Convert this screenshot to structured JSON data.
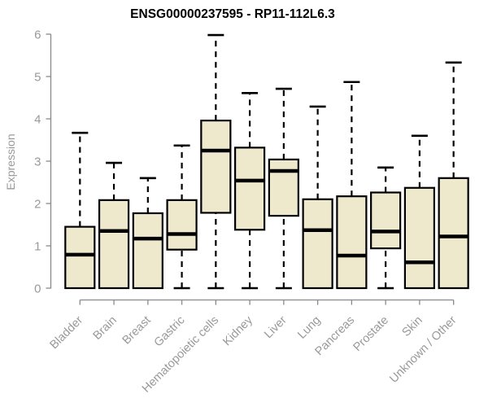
{
  "title": "ENSG00000237595 - RP11-112L6.3",
  "chart_data": {
    "type": "boxplot",
    "title": "ENSG00000237595 - RP11-112L6.3",
    "xlabel": "",
    "ylabel": "Expression",
    "ylim": [
      0,
      6
    ],
    "yticks": [
      0,
      1,
      2,
      3,
      4,
      5,
      6
    ],
    "grid": false,
    "legend": false,
    "categories": [
      "Bladder",
      "Brain",
      "Breast",
      "Gastric",
      "Hematopoietic cells",
      "Kidney",
      "Liver",
      "Lung",
      "Pancreas",
      "Prostate",
      "Skin",
      "Unknown / Other"
    ],
    "boxes": [
      {
        "label": "Bladder",
        "min": 0,
        "q1": 0,
        "median": 0.79,
        "q3": 1.45,
        "max": 3.67
      },
      {
        "label": "Brain",
        "min": 0,
        "q1": 0,
        "median": 1.35,
        "q3": 2.08,
        "max": 2.96
      },
      {
        "label": "Breast",
        "min": 0,
        "q1": 0,
        "median": 1.17,
        "q3": 1.77,
        "max": 2.6
      },
      {
        "label": "Gastric",
        "min": 0,
        "q1": 0.91,
        "median": 1.28,
        "q3": 2.08,
        "max": 3.37
      },
      {
        "label": "Hematopoietic cells",
        "min": 0,
        "q1": 1.78,
        "median": 3.25,
        "q3": 3.96,
        "max": 5.98
      },
      {
        "label": "Kidney",
        "min": 0,
        "q1": 1.38,
        "median": 2.54,
        "q3": 3.32,
        "max": 4.61
      },
      {
        "label": "Liver",
        "min": 0,
        "q1": 1.71,
        "median": 2.77,
        "q3": 3.04,
        "max": 4.71
      },
      {
        "label": "Lung",
        "min": 0,
        "q1": 0,
        "median": 1.37,
        "q3": 2.1,
        "max": 4.29
      },
      {
        "label": "Pancreas",
        "min": 0,
        "q1": 0,
        "median": 0.77,
        "q3": 2.17,
        "max": 4.87
      },
      {
        "label": "Prostate",
        "min": 0,
        "q1": 0.94,
        "median": 1.34,
        "q3": 2.26,
        "max": 2.85
      },
      {
        "label": "Skin",
        "min": 0,
        "q1": 0,
        "median": 0.61,
        "q3": 2.37,
        "max": 3.6
      },
      {
        "label": "Unknown / Other",
        "min": 0,
        "q1": 0,
        "median": 1.22,
        "q3": 2.6,
        "max": 5.33
      }
    ],
    "colors": {
      "box_fill": "#EEE8CD",
      "box_border": "#000000",
      "median": "#000000",
      "whisker": "#000000",
      "axis_line": "#898989",
      "tick_label": "#999999",
      "title": "#000000",
      "background": "#FFFFFF"
    }
  }
}
